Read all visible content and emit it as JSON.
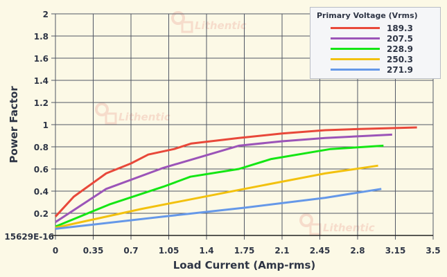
{
  "chart_data": {
    "type": "line",
    "title": "",
    "xlabel": "Load Current (Amp-rms)",
    "ylabel": "Power Factor",
    "xlim": [
      0,
      3.5
    ],
    "ylim": [
      0,
      2
    ],
    "xticks": [
      "0",
      "0.35",
      "0.7",
      "1.05",
      "1.4",
      "1.75",
      "2.1",
      "2.45",
      "2.8",
      "3.15",
      "3.5"
    ],
    "yticks": [
      "15629E-16",
      "0.2",
      "0.4",
      "0.6",
      "0.8",
      "1",
      "1.2",
      "1.4",
      "1.6",
      "1.8",
      "2"
    ],
    "grid": true,
    "legend": {
      "title": "Primary Voltage (Vrms)",
      "placement": "top-right"
    },
    "watermark": "Lithentic",
    "series": [
      {
        "name": "189.3",
        "color": "#e8483a",
        "x": [
          0,
          0.17,
          0.47,
          0.7,
          0.86,
          1.1,
          1.26,
          1.7,
          2.1,
          2.5,
          2.8,
          3.35
        ],
        "y": [
          0.17,
          0.35,
          0.56,
          0.65,
          0.73,
          0.78,
          0.83,
          0.88,
          0.92,
          0.95,
          0.96,
          0.975
        ]
      },
      {
        "name": "207.5",
        "color": "#9b54b8",
        "x": [
          0,
          0.47,
          1.0,
          1.35,
          1.7,
          2.1,
          2.5,
          3.12
        ],
        "y": [
          0.12,
          0.42,
          0.61,
          0.71,
          0.81,
          0.85,
          0.88,
          0.91
        ]
      },
      {
        "name": "228.9",
        "color": "#14e614",
        "x": [
          0,
          0.5,
          1.0,
          1.25,
          1.7,
          2.0,
          2.55,
          3.04
        ],
        "y": [
          0.08,
          0.28,
          0.44,
          0.53,
          0.6,
          0.69,
          0.78,
          0.81
        ]
      },
      {
        "name": "250.3",
        "color": "#f2c10e",
        "x": [
          0,
          0.8,
          1.75,
          2.5,
          2.99
        ],
        "y": [
          0.07,
          0.24,
          0.42,
          0.56,
          0.63
        ]
      },
      {
        "name": "271.9",
        "color": "#6598e8",
        "x": [
          0,
          1.0,
          1.75,
          2.5,
          3.02
        ],
        "y": [
          0.06,
          0.17,
          0.25,
          0.34,
          0.42
        ]
      }
    ]
  }
}
